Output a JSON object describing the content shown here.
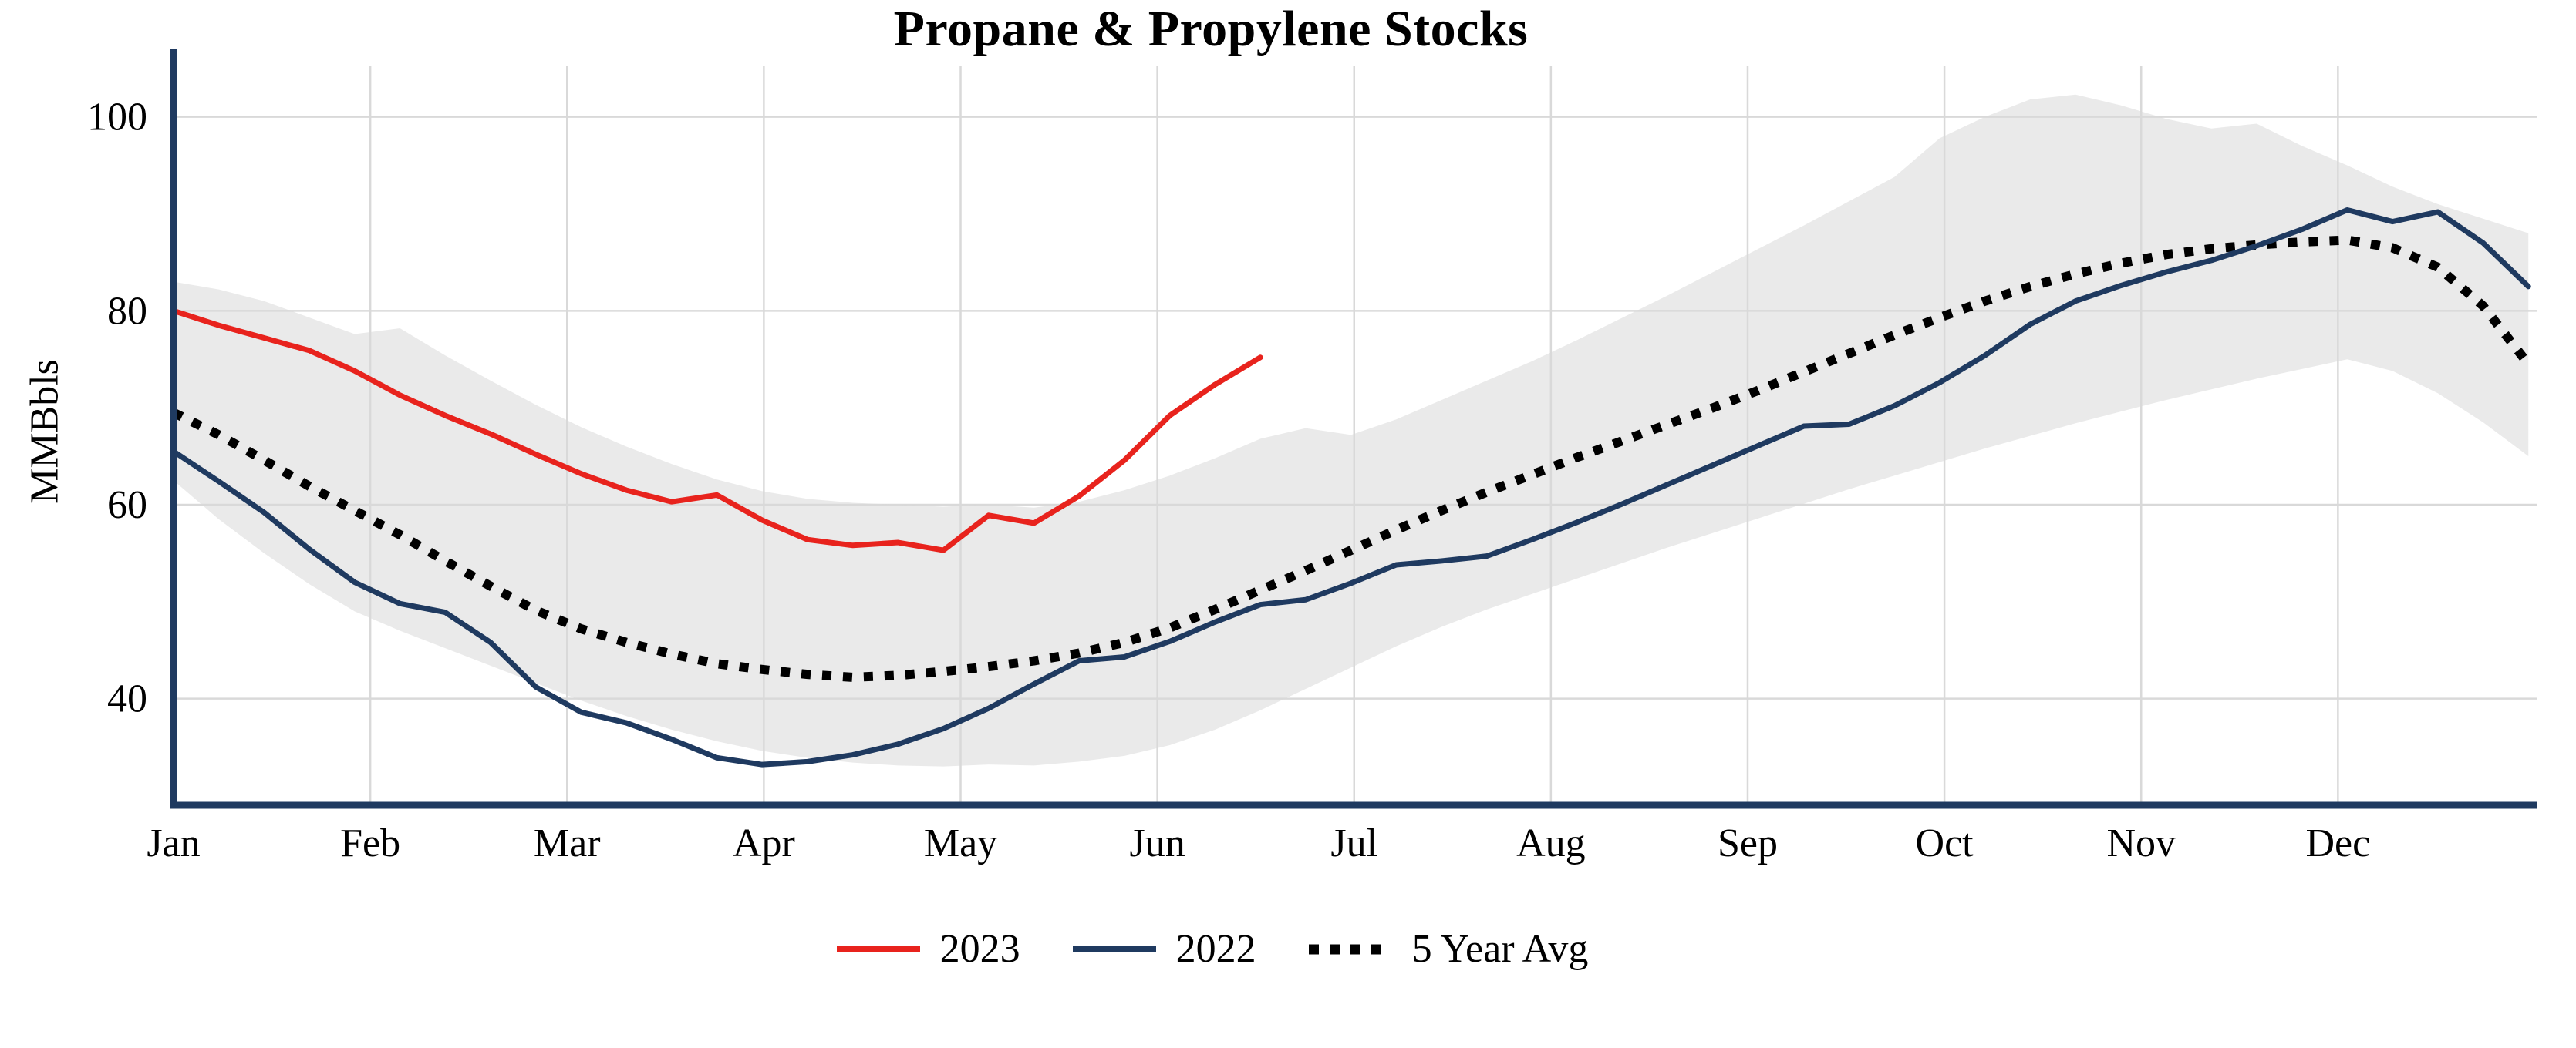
{
  "chart_data": {
    "type": "line",
    "title": "Propane & Propylene Stocks",
    "ylabel": "MMBbls",
    "x_axis": {
      "unit": "weeks",
      "months": [
        "Jan",
        "Feb",
        "Mar",
        "Apr",
        "May",
        "Jun",
        "Jul",
        "Aug",
        "Sep",
        "Oct",
        "Nov",
        "Dec"
      ],
      "weeks_per_month": 4.345,
      "total_weeks": 52.2
    },
    "ylim": [
      29,
      105.3
    ],
    "yticks": [
      40,
      60,
      80,
      100
    ],
    "grid": true,
    "legend_position": "bottom",
    "axis_color": "#1f3a60",
    "grid_color": "#d9d9d9",
    "band": {
      "name": "5-year range",
      "color": "#d9d9d9",
      "opacity": 0.55,
      "upper": [
        83.0,
        82.2,
        81.0,
        79.3,
        77.6,
        78.2,
        75.4,
        72.8,
        70.3,
        68.0,
        66.0,
        64.2,
        62.6,
        61.4,
        60.6,
        60.2,
        60.0,
        59.8,
        60.0,
        59.7,
        60.3,
        61.5,
        63.0,
        64.8,
        66.8,
        67.9,
        67.2,
        68.8,
        70.8,
        72.8,
        74.8,
        77.0,
        79.3,
        81.6,
        84.0,
        86.4,
        88.8,
        91.3,
        93.8,
        97.8,
        100.0,
        101.8,
        102.3,
        101.2,
        99.8,
        98.8,
        99.3,
        97.0,
        95.0,
        92.8,
        91.0,
        89.5,
        88.0
      ],
      "lower": [
        62.5,
        58.5,
        55.0,
        51.8,
        49.0,
        47.0,
        45.2,
        43.4,
        41.6,
        39.8,
        38.2,
        36.8,
        35.6,
        34.6,
        33.9,
        33.4,
        33.1,
        33.0,
        33.2,
        33.1,
        33.5,
        34.1,
        35.2,
        36.8,
        38.8,
        41.0,
        43.2,
        45.4,
        47.4,
        49.2,
        50.8,
        52.4,
        54.0,
        55.6,
        57.1,
        58.6,
        60.1,
        61.6,
        63.0,
        64.4,
        65.8,
        67.1,
        68.4,
        69.6,
        70.8,
        71.9,
        73.0,
        74.0,
        75.0,
        73.8,
        71.5,
        68.5,
        65.0
      ]
    },
    "series": [
      {
        "name": "2023",
        "color": "#e8231d",
        "style": "solid",
        "start_week": 0,
        "values": [
          80.0,
          78.5,
          77.2,
          75.9,
          73.8,
          71.3,
          69.2,
          67.3,
          65.2,
          63.2,
          61.5,
          60.3,
          61.0,
          58.4,
          56.4,
          55.8,
          56.1,
          55.3,
          58.9,
          58.1,
          60.9,
          64.6,
          69.2,
          72.4,
          75.2
        ]
      },
      {
        "name": "2022",
        "color": "#1f3a60",
        "style": "solid",
        "start_week": 0,
        "values": [
          65.5,
          62.4,
          59.2,
          55.4,
          52.0,
          49.8,
          48.9,
          45.8,
          41.2,
          38.6,
          37.5,
          35.8,
          33.9,
          33.2,
          33.5,
          34.2,
          35.3,
          36.9,
          39.0,
          41.5,
          43.9,
          44.3,
          45.9,
          47.9,
          49.7,
          50.2,
          51.9,
          53.8,
          54.2,
          54.7,
          56.4,
          58.2,
          60.1,
          62.1,
          64.1,
          66.1,
          68.1,
          68.3,
          70.2,
          72.6,
          75.4,
          78.6,
          81.0,
          82.6,
          84.0,
          85.2,
          86.7,
          88.4,
          90.4,
          89.2,
          90.2,
          87.0,
          82.5
        ]
      },
      {
        "name": "5 Year Avg",
        "color": "#000000",
        "style": "dotted",
        "start_week": 0,
        "values": [
          69.5,
          67.2,
          64.6,
          61.9,
          59.4,
          56.9,
          54.2,
          51.6,
          49.1,
          47.2,
          45.8,
          44.6,
          43.6,
          43.0,
          42.5,
          42.2,
          42.4,
          42.8,
          43.3,
          43.9,
          44.7,
          45.8,
          47.3,
          49.2,
          51.2,
          53.2,
          55.3,
          57.4,
          59.4,
          61.3,
          63.1,
          64.9,
          66.6,
          68.3,
          70.0,
          71.8,
          73.7,
          75.6,
          77.5,
          79.3,
          81.0,
          82.5,
          83.8,
          84.9,
          85.8,
          86.4,
          86.8,
          87.1,
          87.3,
          86.5,
          84.5,
          80.5,
          74.5
        ]
      }
    ]
  }
}
